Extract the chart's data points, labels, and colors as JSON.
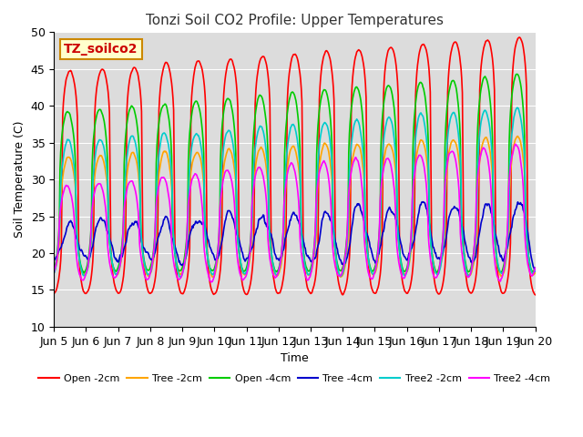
{
  "title": "Tonzi Soil CO2 Profile: Upper Temperatures",
  "xlabel": "Time",
  "ylabel": "Soil Temperature (C)",
  "ylim": [
    10,
    50
  ],
  "annotation": "TZ_soilco2",
  "bg_color": "#dcdcdc",
  "series": [
    {
      "label": "Open -2cm",
      "color": "#ff0000",
      "lw": 1.2,
      "trough": 14.5,
      "peak_early": 44.5,
      "peak_late": 49.5,
      "phase_shift": 0.0,
      "sharpness": 4.0,
      "noise": 0.3
    },
    {
      "label": "Tree -2cm",
      "color": "#ffa500",
      "lw": 1.2,
      "trough": 17.0,
      "peak_early": 33.0,
      "peak_late": 36.0,
      "phase_shift": 0.05,
      "sharpness": 2.0,
      "noise": 0.4
    },
    {
      "label": "Open -4cm",
      "color": "#00cc00",
      "lw": 1.2,
      "trough": 17.5,
      "peak_early": 39.0,
      "peak_late": 44.5,
      "phase_shift": 0.07,
      "sharpness": 2.5,
      "noise": 0.3
    },
    {
      "label": "Tree -4cm",
      "color": "#0000cc",
      "lw": 1.2,
      "trough": 19.0,
      "peak_early": 24.0,
      "peak_late": 27.0,
      "phase_shift": 0.0,
      "sharpness": 1.0,
      "noise": 1.2
    },
    {
      "label": "Tree2 -2cm",
      "color": "#00cccc",
      "lw": 1.2,
      "trough": 17.0,
      "peak_early": 35.0,
      "peak_late": 40.0,
      "phase_shift": 0.06,
      "sharpness": 2.0,
      "noise": 0.4
    },
    {
      "label": "Tree2 -4cm",
      "color": "#ff00ff",
      "lw": 1.2,
      "trough": 16.5,
      "peak_early": 29.0,
      "peak_late": 35.0,
      "phase_shift": 0.1,
      "sharpness": 1.8,
      "noise": 0.5
    }
  ],
  "tick_labels": [
    "Jun 5",
    "Jun 6",
    "Jun 7",
    "Jun 8",
    "Jun 9",
    "Jun 10",
    "Jun 11",
    "Jun 12",
    "Jun 13",
    "Jun 14",
    "Jun 15",
    "Jun 16",
    "Jun 17",
    "Jun 18",
    "Jun 19",
    "Jun 20"
  ],
  "yticks": [
    10,
    15,
    20,
    25,
    30,
    35,
    40,
    45,
    50
  ]
}
